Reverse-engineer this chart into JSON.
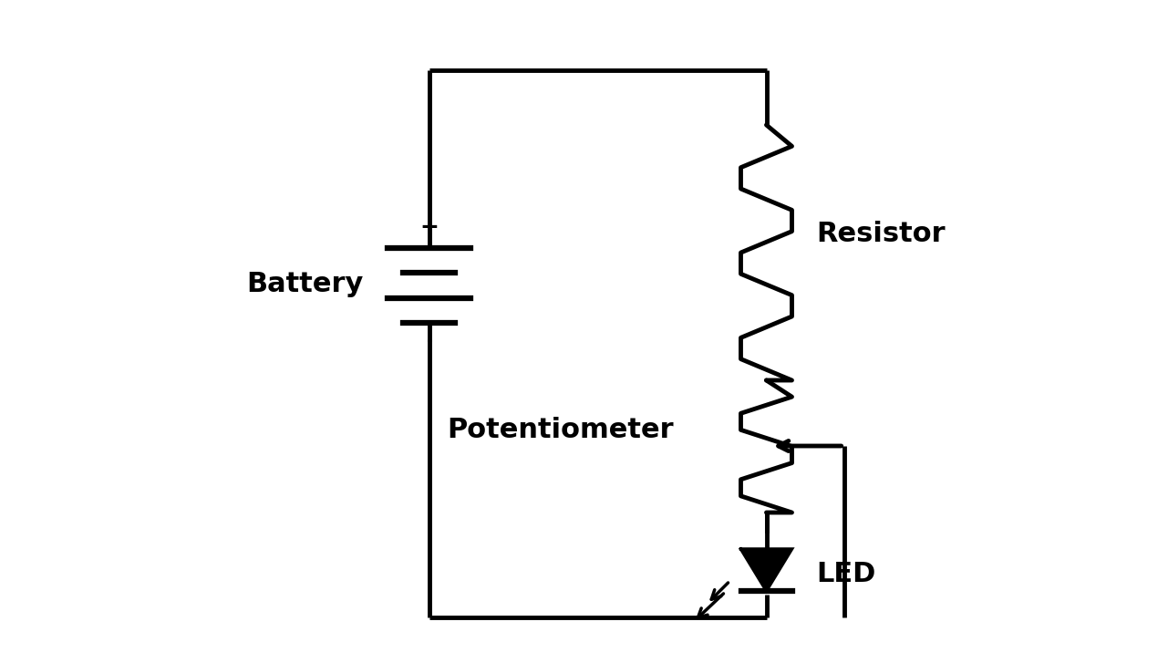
{
  "bg_color": "#ffffff",
  "line_color": "#000000",
  "line_width": 3.5,
  "fig_width": 12.81,
  "fig_height": 7.27,
  "battery_label": "Battery",
  "resistor_label": "Resistor",
  "potentiometer_label": "Potentiometer",
  "led_label": "LED",
  "label_fontsize": 22,
  "label_fontweight": "bold"
}
